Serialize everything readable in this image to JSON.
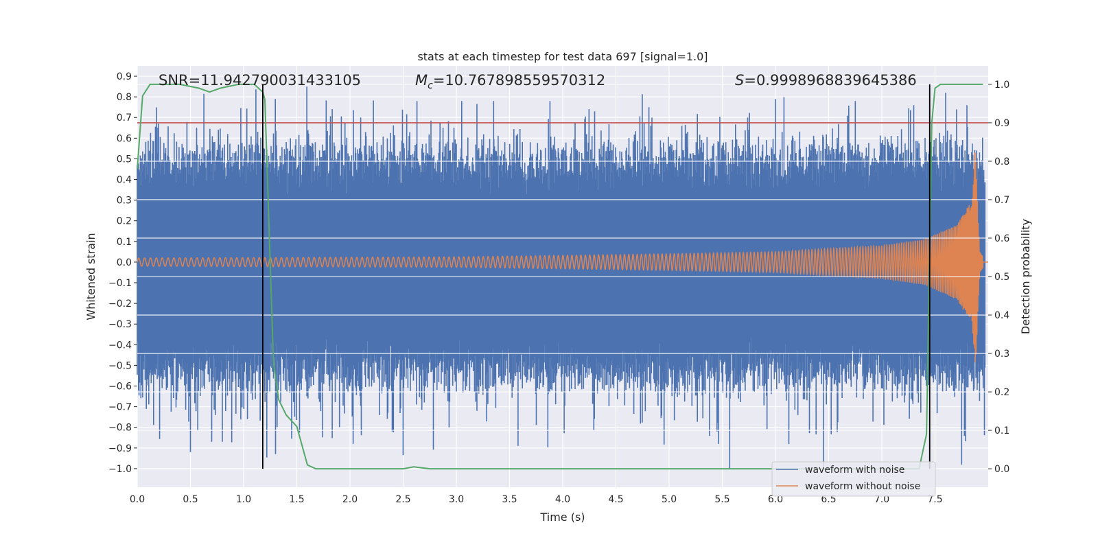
{
  "chart_data": {
    "type": "line",
    "title": "stats at each timestep for test data 697 [signal=1.0]",
    "xlabel": "Time (s)",
    "ylabel_left": "Whitened strain",
    "ylabel_right": "Detection probability",
    "xlim": [
      0.0,
      8.0
    ],
    "ylim_left": [
      -1.09,
      0.95
    ],
    "ylim_right": [
      -0.048,
      1.048
    ],
    "x_ticks": [
      "0.0",
      "0.5",
      "1.0",
      "1.5",
      "2.0",
      "2.5",
      "3.0",
      "3.5",
      "4.0",
      "4.5",
      "5.0",
      "5.5",
      "6.0",
      "6.5",
      "7.0",
      "7.5"
    ],
    "y_left_ticks": [
      "0.9",
      "0.8",
      "0.7",
      "0.6",
      "0.5",
      "0.4",
      "0.3",
      "0.2",
      "0.1",
      "0.0",
      "−0.1",
      "−0.2",
      "−0.3",
      "−0.4",
      "−0.5",
      "−0.6",
      "−0.7",
      "−0.8",
      "−0.9",
      "−1.0"
    ],
    "y_right_ticks": [
      "1.0",
      "0.9",
      "0.8",
      "0.7",
      "0.6",
      "0.5",
      "0.4",
      "0.3",
      "0.2",
      "0.1",
      "0.0"
    ],
    "grid": true,
    "legend_position": "bottom-right",
    "annotations": {
      "snr": "SNR=11.942790031433105",
      "mc_symbol": "M",
      "mc_sub": "c",
      "mc_value": "=10.767898559570312",
      "s_symbol": "S",
      "s_value": "=0.9998968839645386"
    },
    "threshold": {
      "axis": "right",
      "value": 0.9,
      "color": "#c44e52"
    },
    "vertical_markers": [
      1.18,
      7.45
    ],
    "series": [
      {
        "name": "waveform with noise",
        "axis": "left",
        "color": "#4c72b0",
        "description": "noisy whitened strain, dense band roughly between -0.4 and 0.35 with spikes up to 0.8 and down to -1.0",
        "band": [
          -0.4,
          0.35
        ],
        "spikes_up": [
          [
            0.2,
            0.67
          ],
          [
            0.85,
            0.62
          ],
          [
            1.6,
            0.58
          ],
          [
            2.63,
            0.78
          ],
          [
            3.05,
            0.78
          ],
          [
            3.35,
            0.78
          ],
          [
            3.88,
            0.78
          ],
          [
            4.3,
            0.73
          ],
          [
            5.12,
            0.66
          ],
          [
            5.75,
            0.64
          ],
          [
            6.0,
            0.79
          ],
          [
            6.75,
            0.78
          ],
          [
            7.3,
            0.76
          ],
          [
            7.6,
            0.82
          ],
          [
            7.8,
            0.76
          ]
        ],
        "spikes_down": [
          [
            0.5,
            -0.92
          ],
          [
            0.8,
            -0.87
          ],
          [
            1.3,
            -0.93
          ],
          [
            2.03,
            -0.88
          ],
          [
            3.58,
            -0.89
          ],
          [
            5.45,
            -0.82
          ],
          [
            5.57,
            -1.0
          ],
          [
            6.45,
            -1.0
          ],
          [
            7.75,
            -0.98
          ]
        ]
      },
      {
        "name": "waveform without noise",
        "axis": "left",
        "color": "#dd8452",
        "description": "chirp signal, amplitude ~0.02 at start growing to ~0.12 near 7.4 s, spiking to +0.53/-0.37 at merger around 7.88 s then ringdown to 0",
        "amplitude_envelope": [
          [
            0.0,
            0.02
          ],
          [
            3.0,
            0.025
          ],
          [
            5.0,
            0.04
          ],
          [
            6.0,
            0.05
          ],
          [
            7.0,
            0.08
          ],
          [
            7.4,
            0.11
          ],
          [
            7.7,
            0.18
          ],
          [
            7.85,
            0.3
          ],
          [
            7.88,
            0.53
          ],
          [
            7.92,
            0.05
          ],
          [
            8.0,
            0.0
          ]
        ]
      },
      {
        "name": "Detection probability",
        "axis": "right",
        "color": "#55a868",
        "x": [
          0.0,
          0.05,
          0.12,
          0.2,
          0.4,
          0.58,
          0.68,
          0.78,
          0.95,
          1.1,
          1.18,
          1.2,
          1.28,
          1.33,
          1.4,
          1.5,
          1.6,
          1.68,
          2.0,
          2.5,
          2.6,
          2.75,
          3.0,
          7.0,
          7.35,
          7.42,
          7.47,
          7.5,
          7.55,
          7.95
        ],
        "y": [
          0.78,
          0.97,
          1.0,
          1.0,
          1.0,
          0.99,
          0.98,
          0.99,
          1.0,
          1.0,
          0.98,
          0.96,
          0.28,
          0.18,
          0.14,
          0.11,
          0.01,
          0.0,
          0.0,
          0.0,
          0.005,
          0.0,
          0.0,
          0.0,
          0.0,
          0.09,
          0.9,
          0.99,
          1.0,
          1.0
        ]
      }
    ]
  }
}
